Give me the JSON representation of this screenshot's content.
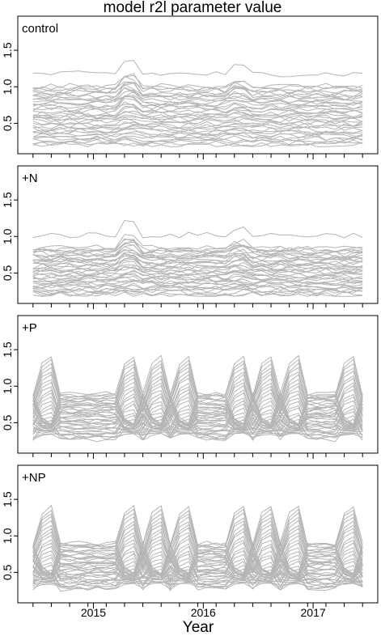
{
  "chart_data": {
    "type": "line",
    "title": "model r2l parameter value",
    "xlabel": "Year",
    "ylabel": "",
    "x_ticks": [
      "2015",
      "2016",
      "2017"
    ],
    "x_range": [
      2014.4,
      2017.5
    ],
    "panels": [
      {
        "label": "control",
        "ylim": [
          0.15,
          1.9
        ],
        "y_ticks": [
          "0.5",
          "1.0",
          "1.5"
        ],
        "series_count": 40,
        "y_min": 0.2,
        "y_max": 1.35,
        "series_color": "#b5b5b5"
      },
      {
        "label": "+N",
        "ylim": [
          0.15,
          1.9
        ],
        "y_ticks": [
          "0.5",
          "1.0",
          "1.5"
        ],
        "series_count": 40,
        "y_min": 0.2,
        "y_max": 1.12,
        "series_color": "#b5b5b5"
      },
      {
        "label": "+P",
        "ylim": [
          0.15,
          1.9
        ],
        "y_ticks": [
          "0.5",
          "1.0",
          "1.5"
        ],
        "series_count": 40,
        "y_min": 0.2,
        "y_max": 1.8,
        "series_color": "#b5b5b5"
      },
      {
        "label": "+NP",
        "ylim": [
          0.15,
          1.9
        ],
        "y_ticks": [
          "0.5",
          "1.0",
          "1.5"
        ],
        "series_count": 40,
        "y_min": 0.2,
        "y_max": 1.8,
        "series_color": "#b5b5b5"
      }
    ]
  }
}
